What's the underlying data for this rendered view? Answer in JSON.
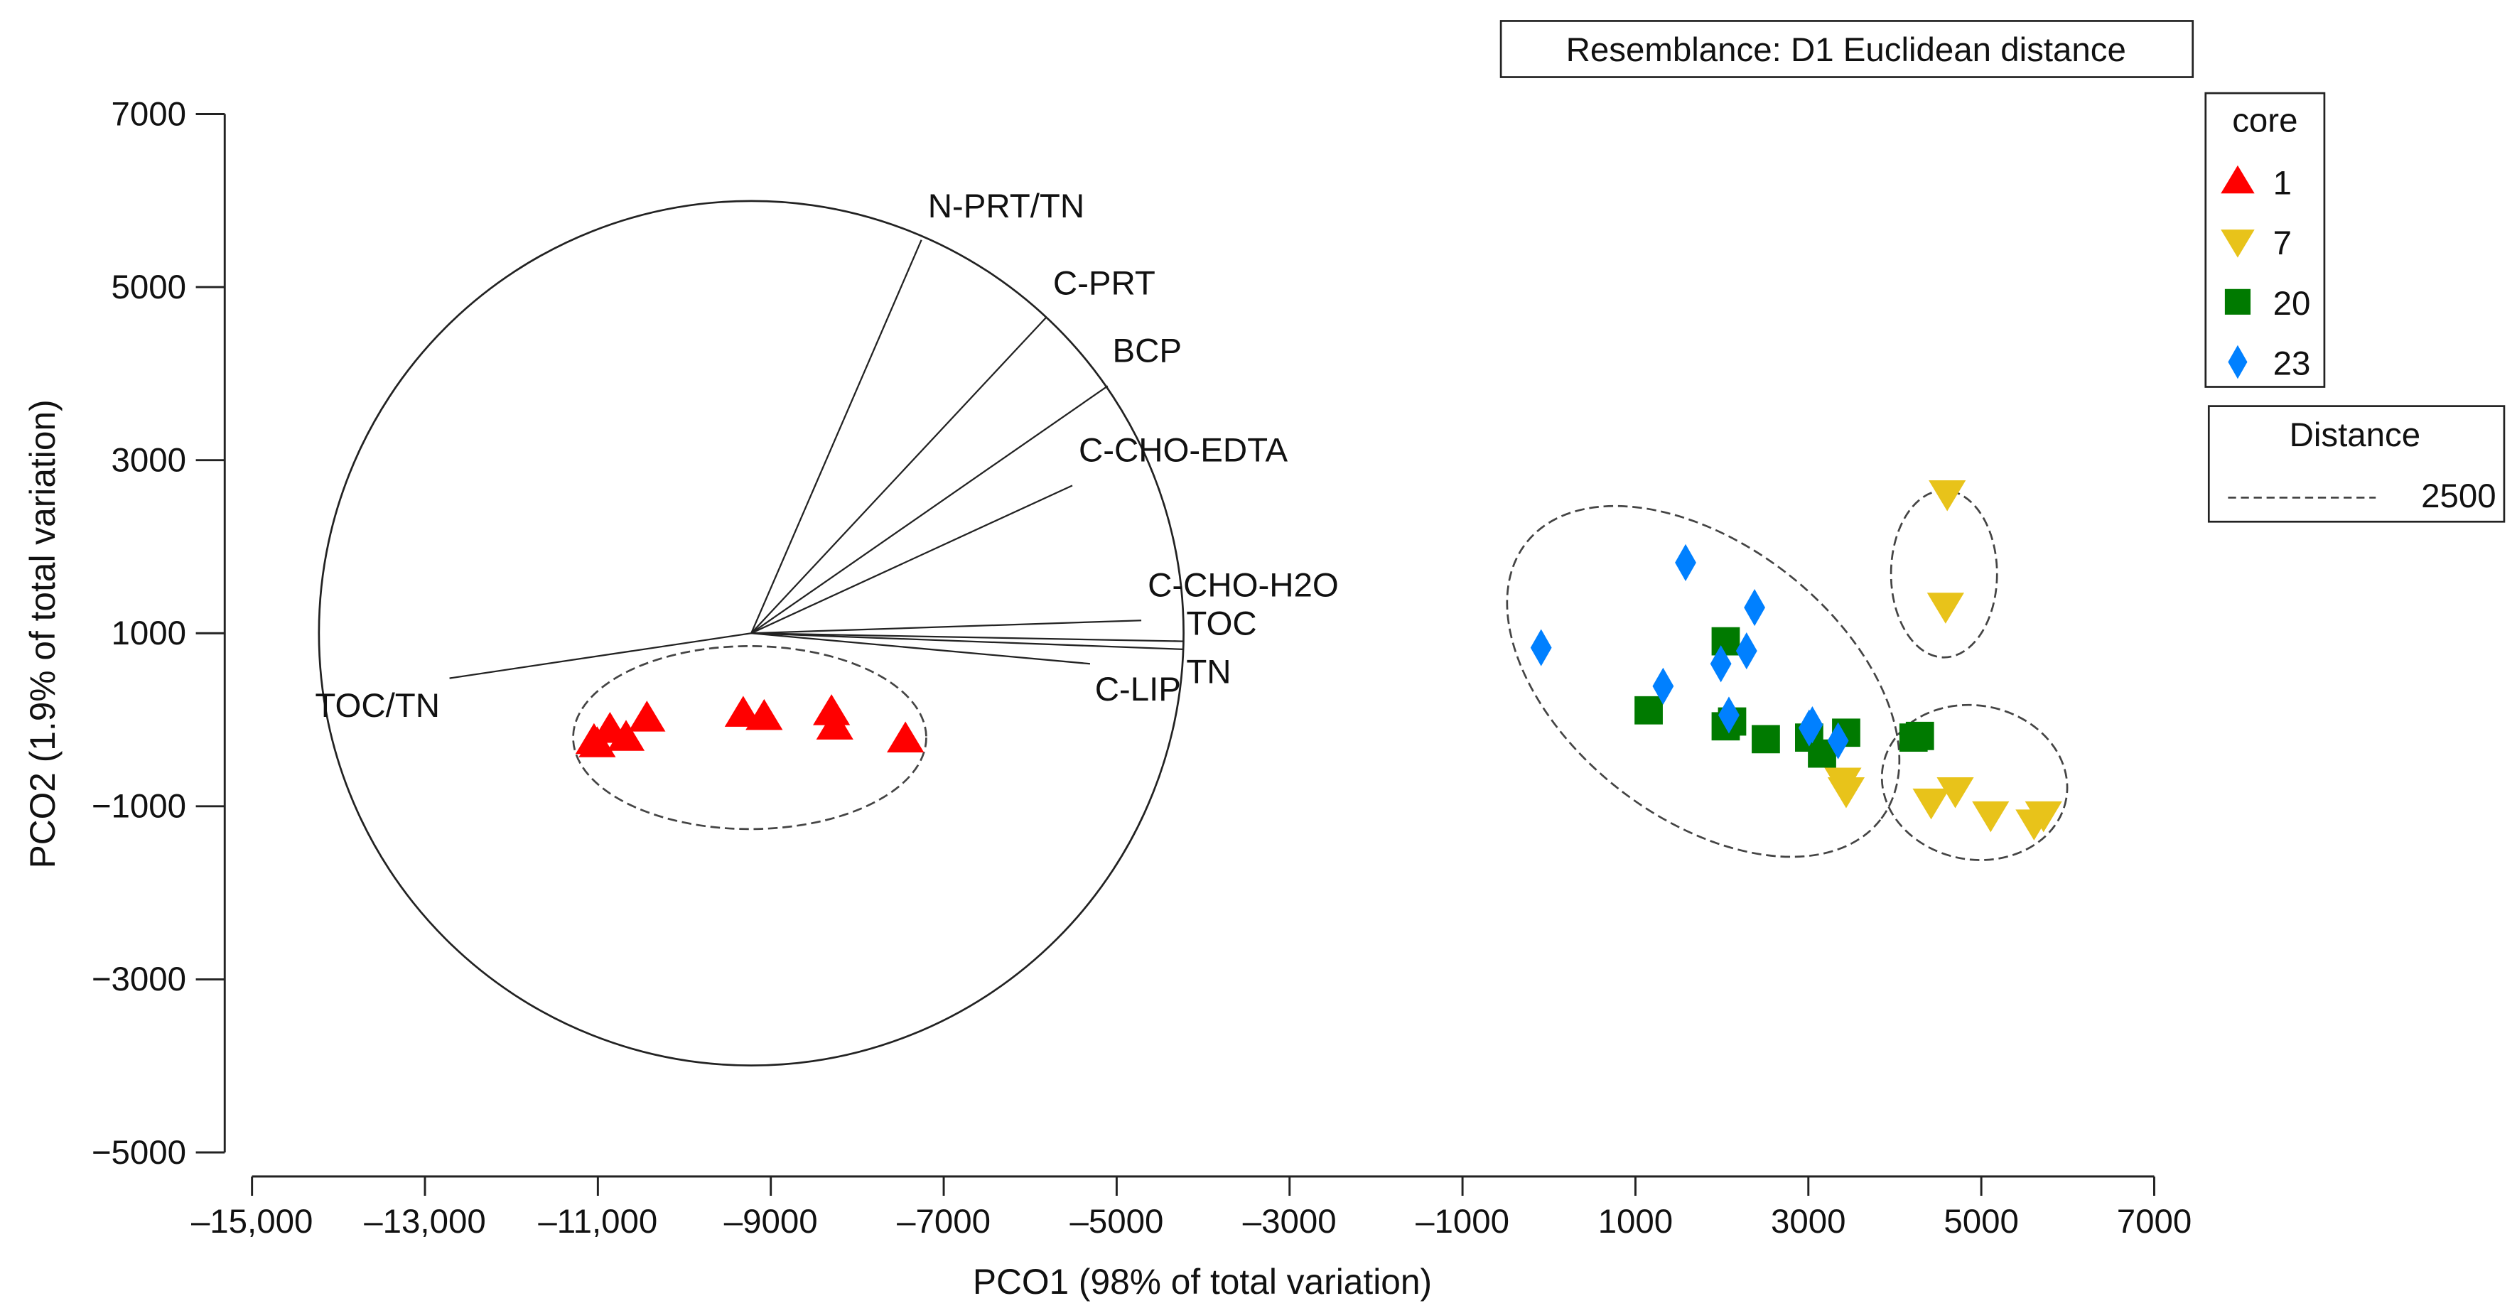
{
  "chart_data": {
    "type": "scatter",
    "title": "",
    "resemblance": "Resemblance: D1 Euclidean distance",
    "xlabel": "PCO1 (98% of total variation)",
    "ylabel": "PCO2 (1.9% of total variation)",
    "xlim": [
      -15000,
      7000
    ],
    "ylim": [
      -5000,
      7000
    ],
    "xticks": [
      -15000,
      -13000,
      -11000,
      -9000,
      -7000,
      -5000,
      -3000,
      -1000,
      1000,
      3000,
      5000,
      7000
    ],
    "xtick_labels": [
      "–15,000",
      "–13,000",
      "–11,000",
      "–9000",
      "–7000",
      "–5000",
      "–3000",
      "–1000",
      "1000",
      "3000",
      "5000",
      "7000"
    ],
    "yticks": [
      7000,
      5000,
      3000,
      1000,
      -1000,
      -3000,
      -5000
    ],
    "ytick_labels": [
      "7000",
      "5000",
      "3000",
      "1000",
      "−1000",
      "−3000",
      "−5000"
    ],
    "grid": false,
    "legend": {
      "title": "core",
      "placement": "top-right",
      "entries": [
        {
          "label": "1",
          "marker": "triangle-up",
          "color": "#ff0000"
        },
        {
          "label": "7",
          "marker": "triangle-down",
          "color": "#e8c31a"
        },
        {
          "label": "20",
          "marker": "square",
          "color": "#007a00"
        },
        {
          "label": "23",
          "marker": "diamond",
          "color": "#0080ff"
        }
      ]
    },
    "distance_legend": {
      "title": "Distance",
      "label": "2500"
    },
    "series": [
      {
        "name": "1",
        "points": [
          [
            -11045,
            -243
          ],
          [
            -11008,
            -280
          ],
          [
            -10860,
            -113
          ],
          [
            -10674,
            -206
          ],
          [
            -10433,
            17
          ],
          [
            -9319,
            72
          ],
          [
            -9077,
            35
          ],
          [
            -8298,
            91
          ],
          [
            -8260,
            -76
          ],
          [
            -7443,
            -224
          ]
        ]
      },
      {
        "name": "7",
        "points": [
          [
            4606,
            2614
          ],
          [
            4587,
            1315
          ],
          [
            3400,
            -707
          ],
          [
            3437,
            -818
          ],
          [
            4420,
            -948
          ],
          [
            4699,
            -818
          ],
          [
            5108,
            -1096
          ],
          [
            5610,
            -1190
          ],
          [
            5720,
            -1096
          ]
        ]
      },
      {
        "name": "20",
        "points": [
          [
            1153,
            109
          ],
          [
            2044,
            907
          ],
          [
            2044,
            -76
          ],
          [
            2118,
            -20
          ],
          [
            2508,
            -224
          ],
          [
            3009,
            -206
          ],
          [
            3158,
            -391
          ],
          [
            3437,
            -150
          ],
          [
            4216,
            -206
          ],
          [
            4290,
            -187
          ]
        ]
      },
      {
        "name": "23",
        "points": [
          [
            -91,
            833
          ],
          [
            1580,
            1816
          ],
          [
            2378,
            1297
          ],
          [
            1988,
            647
          ],
          [
            2285,
            796
          ],
          [
            1320,
            388
          ],
          [
            2081,
            54
          ],
          [
            3009,
            -95
          ],
          [
            3046,
            -58
          ],
          [
            3344,
            -243
          ]
        ]
      }
    ],
    "distance_ellipses": [
      {
        "cx": -9244,
        "cy": -206,
        "rx": 2042,
        "ry": 1057,
        "angle": 0
      },
      {
        "cx": 1784,
        "cy": 443,
        "rx": 2600,
        "ry": 1580,
        "angle": -38
      },
      {
        "cx": 4569,
        "cy": 1686,
        "rx": 613,
        "ry": 965,
        "angle": 0
      },
      {
        "cx": 4922,
        "cy": -725,
        "rx": 1077,
        "ry": 890,
        "angle": -10
      }
    ],
    "vector_circle": {
      "cx": -9226,
      "cy": 1000,
      "r": 5000
    },
    "vectors": [
      {
        "label": "N-PRT/TN",
        "x": -7258,
        "y": 5545
      },
      {
        "label": "C-PRT",
        "x": -5810,
        "y": 4655
      },
      {
        "label": "BCP",
        "x": -5104,
        "y": 3857
      },
      {
        "label": "C-CHO-EDTA",
        "x": -5513,
        "y": 2707
      },
      {
        "label": "C-CHO-H2O",
        "x": -4715,
        "y": 1148
      },
      {
        "label": "TOC",
        "x": -4232,
        "y": 907
      },
      {
        "label": "TN",
        "x": -4232,
        "y": 814
      },
      {
        "label": "C-LIP",
        "x": -5308,
        "y": 647
      },
      {
        "label": "TOC/TN",
        "x": -12716,
        "y": 480
      }
    ]
  }
}
